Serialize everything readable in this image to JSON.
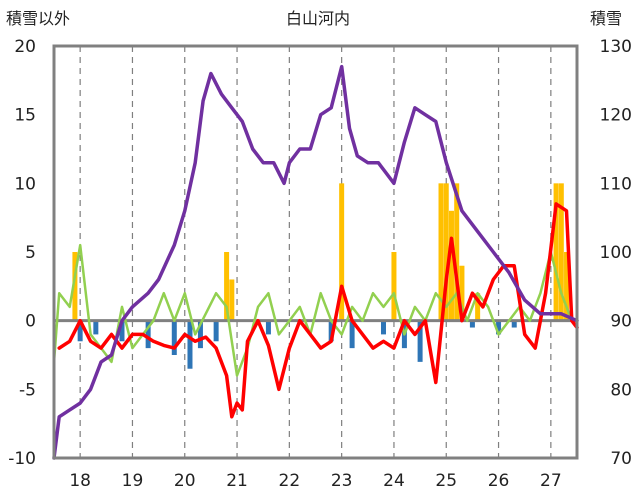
{
  "chart_data": {
    "type": "line",
    "title": "白山河内",
    "ylabel_left": "積雪以外",
    "ylabel_right": "積雪",
    "xlim": [
      17.5,
      27.5
    ],
    "ylim_left": [
      -10,
      20
    ],
    "ylim_right": [
      70,
      130
    ],
    "yticks_left": [
      -10,
      -5,
      0,
      5,
      10,
      15,
      20
    ],
    "yticks_right": [
      70,
      80,
      90,
      100,
      110,
      120,
      130
    ],
    "xticks": [
      18,
      19,
      20,
      21,
      22,
      23,
      24,
      25,
      26,
      27
    ],
    "xtick_labels": [
      "18",
      "19",
      "20",
      "21",
      "22",
      "23",
      "24",
      "25",
      "26",
      "27"
    ],
    "grid": "dashed-vertical",
    "colors": {
      "snow_depth": "#7030a0",
      "red_line": "#ff0000",
      "green_line": "#92d050",
      "blue_bars": "#2e75b6",
      "yellow_bars": "#ffc000",
      "zero_line": "#808080",
      "frame": "#808080"
    },
    "series": [
      {
        "axis": "right",
        "color": "#7030a0",
        "type": "line",
        "points": [
          [
            17.5,
            70
          ],
          [
            17.6,
            76
          ],
          [
            17.8,
            77
          ],
          [
            18.0,
            78
          ],
          [
            18.2,
            80
          ],
          [
            18.4,
            84
          ],
          [
            18.6,
            85
          ],
          [
            18.8,
            90
          ],
          [
            19.0,
            92
          ],
          [
            19.3,
            94
          ],
          [
            19.5,
            96
          ],
          [
            19.8,
            101
          ],
          [
            20.0,
            106
          ],
          [
            20.2,
            113
          ],
          [
            20.35,
            122
          ],
          [
            20.5,
            126
          ],
          [
            20.7,
            123
          ],
          [
            20.9,
            121
          ],
          [
            21.1,
            119
          ],
          [
            21.3,
            115
          ],
          [
            21.5,
            113
          ],
          [
            21.7,
            113
          ],
          [
            21.9,
            110
          ],
          [
            22.0,
            113
          ],
          [
            22.2,
            115
          ],
          [
            22.4,
            115
          ],
          [
            22.6,
            120
          ],
          [
            22.8,
            121
          ],
          [
            23.0,
            127
          ],
          [
            23.15,
            118
          ],
          [
            23.3,
            114
          ],
          [
            23.5,
            113
          ],
          [
            23.7,
            113
          ],
          [
            24.0,
            110
          ],
          [
            24.2,
            116
          ],
          [
            24.4,
            121
          ],
          [
            24.6,
            120
          ],
          [
            24.8,
            119
          ],
          [
            25.0,
            113
          ],
          [
            25.3,
            106
          ],
          [
            25.6,
            103
          ],
          [
            25.9,
            100
          ],
          [
            26.2,
            97
          ],
          [
            26.5,
            93
          ],
          [
            26.8,
            91
          ],
          [
            27.0,
            91
          ],
          [
            27.2,
            91
          ],
          [
            27.5,
            90
          ]
        ]
      },
      {
        "axis": "left",
        "color": "#ff0000",
        "type": "line",
        "points": [
          [
            17.6,
            -2
          ],
          [
            17.8,
            -1.5
          ],
          [
            18.0,
            0
          ],
          [
            18.2,
            -1.5
          ],
          [
            18.4,
            -2
          ],
          [
            18.6,
            -1
          ],
          [
            18.8,
            -2
          ],
          [
            19.0,
            -1
          ],
          [
            19.2,
            -1
          ],
          [
            19.4,
            -1.5
          ],
          [
            19.6,
            -1.8
          ],
          [
            19.8,
            -2
          ],
          [
            20.0,
            -1
          ],
          [
            20.2,
            -1.5
          ],
          [
            20.4,
            -1.2
          ],
          [
            20.6,
            -2
          ],
          [
            20.8,
            -4
          ],
          [
            20.9,
            -7
          ],
          [
            21.0,
            -6
          ],
          [
            21.1,
            -6.5
          ],
          [
            21.2,
            -1.5
          ],
          [
            21.4,
            0
          ],
          [
            21.6,
            -1.8
          ],
          [
            21.8,
            -5
          ],
          [
            22.0,
            -2
          ],
          [
            22.2,
            0
          ],
          [
            22.4,
            -1
          ],
          [
            22.6,
            -2
          ],
          [
            22.8,
            -1.5
          ],
          [
            23.0,
            2.5
          ],
          [
            23.2,
            0
          ],
          [
            23.4,
            -1
          ],
          [
            23.6,
            -2
          ],
          [
            23.8,
            -1.5
          ],
          [
            24.0,
            -2
          ],
          [
            24.2,
            0
          ],
          [
            24.4,
            -1
          ],
          [
            24.6,
            0
          ],
          [
            24.8,
            -4.5
          ],
          [
            25.0,
            3
          ],
          [
            25.1,
            6
          ],
          [
            25.2,
            3
          ],
          [
            25.3,
            0
          ],
          [
            25.5,
            2
          ],
          [
            25.7,
            1
          ],
          [
            25.9,
            3
          ],
          [
            26.1,
            4
          ],
          [
            26.3,
            4
          ],
          [
            26.5,
            -1
          ],
          [
            26.7,
            -2
          ],
          [
            26.9,
            2
          ],
          [
            27.1,
            8.5
          ],
          [
            27.3,
            8
          ],
          [
            27.4,
            0
          ],
          [
            27.5,
            -0.5
          ]
        ]
      },
      {
        "axis": "left",
        "color": "#92d050",
        "type": "line",
        "points": [
          [
            17.5,
            -3
          ],
          [
            17.6,
            2
          ],
          [
            17.8,
            1
          ],
          [
            18.0,
            5.5
          ],
          [
            18.2,
            -1
          ],
          [
            18.4,
            -2
          ],
          [
            18.6,
            -3
          ],
          [
            18.8,
            1
          ],
          [
            19.0,
            -2
          ],
          [
            19.2,
            -1
          ],
          [
            19.4,
            0
          ],
          [
            19.6,
            2
          ],
          [
            19.8,
            0
          ],
          [
            20.0,
            2
          ],
          [
            20.2,
            -1
          ],
          [
            20.4,
            0.5
          ],
          [
            20.6,
            2
          ],
          [
            20.8,
            1
          ],
          [
            21.0,
            -4
          ],
          [
            21.2,
            -2
          ],
          [
            21.4,
            1
          ],
          [
            21.6,
            2
          ],
          [
            21.8,
            -1
          ],
          [
            22.0,
            0
          ],
          [
            22.2,
            1
          ],
          [
            22.4,
            -1
          ],
          [
            22.6,
            2
          ],
          [
            22.8,
            0
          ],
          [
            23.0,
            -1
          ],
          [
            23.2,
            1
          ],
          [
            23.4,
            0
          ],
          [
            23.6,
            2
          ],
          [
            23.8,
            1
          ],
          [
            24.0,
            2
          ],
          [
            24.2,
            -1
          ],
          [
            24.4,
            1
          ],
          [
            24.6,
            0
          ],
          [
            24.8,
            2
          ],
          [
            25.0,
            1
          ],
          [
            25.2,
            2
          ],
          [
            25.4,
            0
          ],
          [
            25.6,
            2
          ],
          [
            25.8,
            1
          ],
          [
            26.0,
            -1
          ],
          [
            26.2,
            0
          ],
          [
            26.4,
            1
          ],
          [
            26.6,
            0
          ],
          [
            26.8,
            2
          ],
          [
            27.0,
            5
          ],
          [
            27.2,
            2
          ],
          [
            27.4,
            0
          ]
        ]
      },
      {
        "axis": "left",
        "color": "#2e75b6",
        "type": "bar",
        "points": [
          [
            18.0,
            -1.5
          ],
          [
            18.3,
            -1
          ],
          [
            18.8,
            -1.5
          ],
          [
            19.3,
            -2
          ],
          [
            19.8,
            -2.5
          ],
          [
            20.1,
            -3.5
          ],
          [
            20.3,
            -2
          ],
          [
            20.6,
            -1.5
          ],
          [
            21.6,
            -1
          ],
          [
            22.8,
            -1.5
          ],
          [
            23.2,
            -2
          ],
          [
            23.8,
            -1
          ],
          [
            24.2,
            -2
          ],
          [
            24.5,
            -3
          ],
          [
            25.5,
            -0.5
          ],
          [
            26.0,
            -1
          ],
          [
            26.3,
            -0.5
          ]
        ]
      },
      {
        "axis": "left",
        "color": "#ffc000",
        "type": "bar",
        "points": [
          [
            17.9,
            5
          ],
          [
            20.8,
            5
          ],
          [
            20.9,
            3
          ],
          [
            23.0,
            10
          ],
          [
            24.0,
            5
          ],
          [
            24.9,
            10
          ],
          [
            25.0,
            10
          ],
          [
            25.1,
            8
          ],
          [
            25.2,
            10
          ],
          [
            25.3,
            4
          ],
          [
            25.6,
            2
          ],
          [
            27.1,
            10
          ],
          [
            27.2,
            10
          ],
          [
            27.3,
            5
          ]
        ]
      }
    ]
  }
}
